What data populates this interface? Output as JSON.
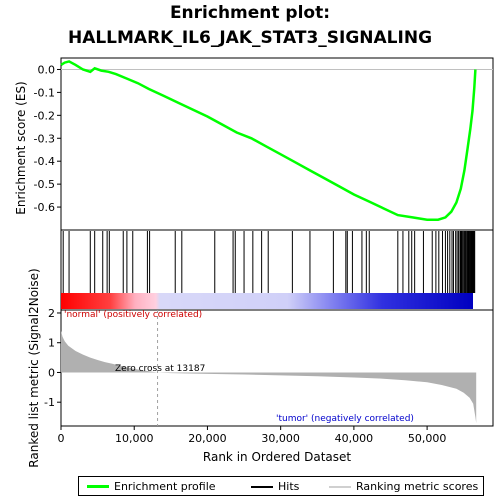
{
  "title_line1": "Enrichment plot:",
  "title_line2": "HALLMARK_IL6_JAK_STAT3_SIGNALING",
  "colors": {
    "profile": "#00ff00",
    "hits": "#000000",
    "metric_fill": "#b0b0b0",
    "zero_cross_line": "#a0a0a0",
    "positive_note": "#cc0000",
    "negative_note": "#0000cc"
  },
  "legend": {
    "profile": "Enrichment profile",
    "hits": "Hits",
    "ranking": "Ranking metric scores"
  },
  "notes": {
    "positive": "'normal' (positively correlated)",
    "negative": "'tumor' (negatively correlated)",
    "zero_cross": "Zero cross at 13187"
  },
  "chart_data": [
    {
      "type": "line",
      "name": "enrichment-profile",
      "ylabel": "Enrichment score (ES)",
      "ylim": [
        -0.7,
        0.05
      ],
      "yticks": [
        0.0,
        -0.1,
        -0.2,
        -0.3,
        -0.4,
        -0.5,
        -0.6
      ],
      "xlim": [
        0,
        56700
      ],
      "grid": false,
      "points": [
        [
          0,
          0.02
        ],
        [
          500,
          0.03
        ],
        [
          1100,
          0.035
        ],
        [
          2000,
          0.02
        ],
        [
          3000,
          0.0
        ],
        [
          4000,
          -0.01
        ],
        [
          4600,
          0.005
        ],
        [
          5500,
          -0.005
        ],
        [
          6500,
          -0.01
        ],
        [
          7500,
          -0.02
        ],
        [
          9000,
          -0.04
        ],
        [
          10500,
          -0.06
        ],
        [
          12000,
          -0.085
        ],
        [
          14000,
          -0.115
        ],
        [
          16000,
          -0.145
        ],
        [
          18000,
          -0.175
        ],
        [
          20000,
          -0.205
        ],
        [
          22000,
          -0.24
        ],
        [
          24000,
          -0.275
        ],
        [
          26000,
          -0.3
        ],
        [
          28000,
          -0.335
        ],
        [
          30000,
          -0.37
        ],
        [
          32000,
          -0.405
        ],
        [
          34000,
          -0.44
        ],
        [
          36000,
          -0.475
        ],
        [
          38000,
          -0.51
        ],
        [
          40000,
          -0.545
        ],
        [
          42000,
          -0.575
        ],
        [
          44000,
          -0.605
        ],
        [
          46000,
          -0.635
        ],
        [
          48000,
          -0.645
        ],
        [
          50000,
          -0.655
        ],
        [
          51500,
          -0.655
        ],
        [
          52500,
          -0.645
        ],
        [
          53300,
          -0.62
        ],
        [
          54000,
          -0.58
        ],
        [
          54600,
          -0.52
        ],
        [
          55100,
          -0.44
        ],
        [
          55500,
          -0.35
        ],
        [
          55900,
          -0.26
        ],
        [
          56200,
          -0.18
        ],
        [
          56450,
          -0.08
        ],
        [
          56600,
          0.0
        ]
      ]
    },
    {
      "type": "bar",
      "name": "hits",
      "x": [
        300,
        1100,
        4000,
        4600,
        5700,
        6300,
        6600,
        8500,
        9000,
        9800,
        11800,
        12100,
        15600,
        16500,
        21000,
        23500,
        23800,
        25000,
        26200,
        27400,
        28300,
        31600,
        34000,
        37200,
        38900,
        39100,
        39800,
        41100,
        41700,
        42100,
        46000,
        46700,
        47500,
        47900,
        48300,
        49500,
        50700,
        51200,
        51600,
        52100,
        52500,
        52800,
        53100,
        53400,
        53600,
        53900,
        54100,
        54300,
        54500,
        54600,
        54700,
        54850,
        55000,
        55100,
        55250,
        55400,
        55500,
        55600,
        55700,
        55800,
        55900,
        56000,
        56100,
        56200,
        56300,
        56400,
        56500
      ]
    },
    {
      "type": "area",
      "name": "ranking-metric",
      "ylabel": "Ranked list metric (Signal2Noise)",
      "xlabel": "Rank in Ordered Dataset",
      "ylim": [
        -1.8,
        2.1
      ],
      "yticks": [
        2,
        1,
        0,
        -1
      ],
      "xlim": [
        0,
        59000
      ],
      "xticks": [
        0,
        10000,
        20000,
        30000,
        40000,
        50000
      ],
      "zero_cross": 13187,
      "points": [
        [
          0,
          1.4
        ],
        [
          200,
          1.2
        ],
        [
          500,
          1.05
        ],
        [
          1000,
          0.9
        ],
        [
          2000,
          0.72
        ],
        [
          3000,
          0.6
        ],
        [
          4000,
          0.5
        ],
        [
          5000,
          0.42
        ],
        [
          6000,
          0.35
        ],
        [
          7000,
          0.29
        ],
        [
          8000,
          0.23
        ],
        [
          9000,
          0.17
        ],
        [
          10000,
          0.12
        ],
        [
          11000,
          0.08
        ],
        [
          12000,
          0.04
        ],
        [
          13187,
          0.0
        ],
        [
          15000,
          -0.02
        ],
        [
          20000,
          -0.05
        ],
        [
          25000,
          -0.07
        ],
        [
          30000,
          -0.1
        ],
        [
          35000,
          -0.13
        ],
        [
          40000,
          -0.17
        ],
        [
          44000,
          -0.21
        ],
        [
          47000,
          -0.26
        ],
        [
          50000,
          -0.33
        ],
        [
          52000,
          -0.42
        ],
        [
          54000,
          -0.55
        ],
        [
          55000,
          -0.68
        ],
        [
          55800,
          -0.85
        ],
        [
          56300,
          -1.05
        ],
        [
          56600,
          -1.5
        ],
        [
          56700,
          -1.7
        ]
      ]
    }
  ]
}
